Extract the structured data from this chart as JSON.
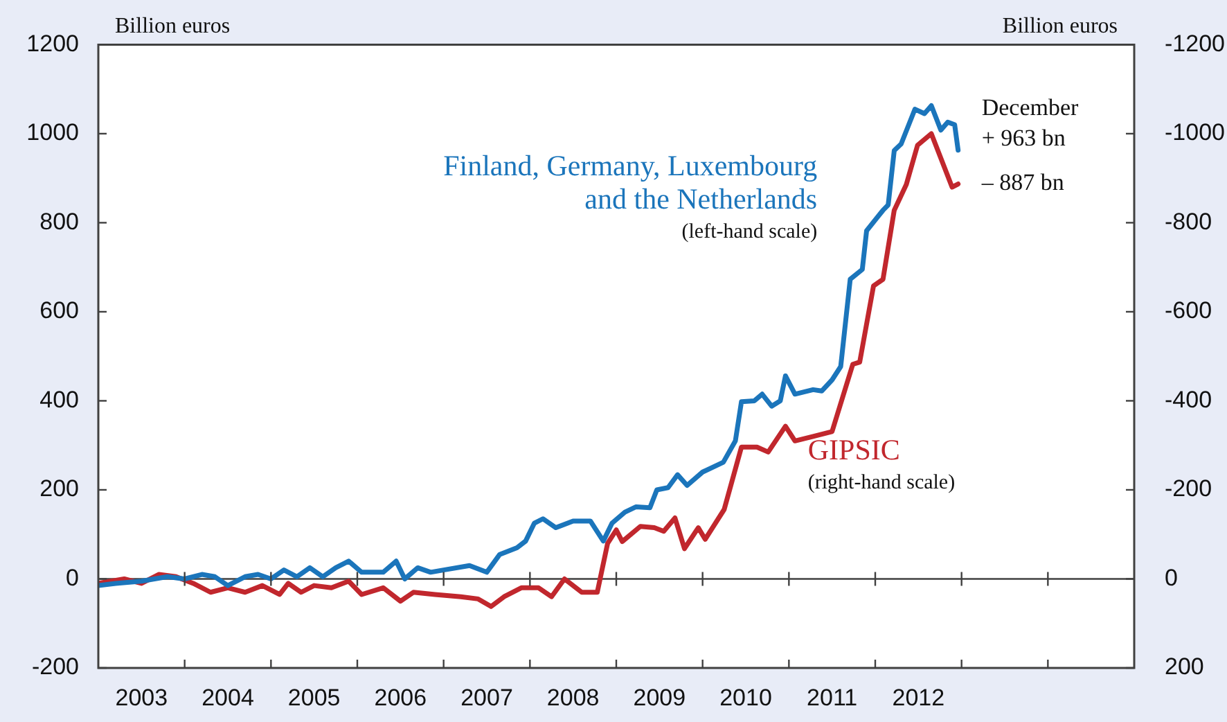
{
  "chart_data": {
    "type": "line",
    "ylabel": "Billion euros",
    "y2label": "Billion euros",
    "xlim": [
      2003,
      2015
    ],
    "xticks": [
      {
        "value": 2003.5,
        "label": "2003"
      },
      {
        "value": 2004,
        "label": null
      },
      {
        "value": 2004.5,
        "label": "2004"
      },
      {
        "value": 2005,
        "label": null
      },
      {
        "value": 2005.5,
        "label": "2005"
      },
      {
        "value": 2006,
        "label": null
      },
      {
        "value": 2006.5,
        "label": "2006"
      },
      {
        "value": 2007,
        "label": null
      },
      {
        "value": 2007.5,
        "label": "2007"
      },
      {
        "value": 2008,
        "label": null
      },
      {
        "value": 2008.5,
        "label": "2008"
      },
      {
        "value": 2009,
        "label": null
      },
      {
        "value": 2009.5,
        "label": "2009"
      },
      {
        "value": 2010,
        "label": null
      },
      {
        "value": 2010.5,
        "label": "2010"
      },
      {
        "value": 2011,
        "label": null
      },
      {
        "value": 2011.5,
        "label": "2011"
      },
      {
        "value": 2012,
        "label": null
      },
      {
        "value": 2012.5,
        "label": "2012"
      },
      {
        "value": 2013,
        "label": null
      },
      {
        "value": 2014,
        "label": null
      }
    ],
    "ylim": [
      -200,
      1200
    ],
    "yticks": [
      -200,
      0,
      200,
      400,
      600,
      800,
      1000,
      1200
    ],
    "y2lim": [
      200,
      -1200
    ],
    "y2ticks": [
      200,
      0,
      -200,
      -400,
      -600,
      -800,
      -1000,
      -1200
    ],
    "ref_lines": [
      {
        "axis": "y",
        "value": 0,
        "color": "#404040"
      }
    ],
    "annotations": [
      "(left-hand scale)",
      "(right-hand scale)",
      {
        "text": "December\n+ 963 bn",
        "x": 2012.96,
        "y": 963
      },
      {
        "text": "– 887 bn",
        "x": 2012.96,
        "y": 887
      }
    ],
    "series": [
      {
        "name": "Finland, Germany, Luxembourg and the Netherlands",
        "color": "#1b75bb",
        "x": [
          2003.0,
          2003.2,
          2003.5,
          2003.8,
          2004.0,
          2004.2,
          2004.35,
          2004.5,
          2004.7,
          2004.85,
          2005.0,
          2005.15,
          2005.3,
          2005.45,
          2005.6,
          2005.75,
          2005.9,
          2006.05,
          2006.3,
          2006.45,
          2006.55,
          2006.7,
          2006.85,
          2007.0,
          2007.3,
          2007.5,
          2007.65,
          2007.85,
          2007.95,
          2008.05,
          2008.15,
          2008.3,
          2008.5,
          2008.7,
          2008.85,
          2008.95,
          2009.1,
          2009.23,
          2009.39,
          2009.47,
          2009.6,
          2009.71,
          2009.82,
          2010.0,
          2010.24,
          2010.38,
          2010.45,
          2010.6,
          2010.69,
          2010.8,
          2010.9,
          2010.96,
          2011.07,
          2011.28,
          2011.38,
          2011.5,
          2011.6,
          2011.71,
          2011.85,
          2011.9,
          2012.09,
          2012.15,
          2012.22,
          2012.3,
          2012.46,
          2012.57,
          2012.65,
          2012.76,
          2012.84,
          2012.92,
          2012.96
        ],
        "values": [
          -15,
          -10,
          -5,
          5,
          0,
          10,
          5,
          -15,
          5,
          10,
          0,
          20,
          5,
          25,
          5,
          25,
          40,
          15,
          15,
          40,
          0,
          25,
          15,
          20,
          30,
          15,
          55,
          70,
          85,
          125,
          135,
          115,
          130,
          130,
          85,
          125,
          150,
          162,
          160,
          200,
          205,
          234,
          210,
          240,
          262,
          310,
          398,
          400,
          415,
          388,
          400,
          456,
          415,
          425,
          422,
          447,
          477,
          673,
          695,
          782,
          828,
          840,
          962,
          977,
          1055,
          1045,
          1063,
          1008,
          1026,
          1020,
          963
        ]
      },
      {
        "name": "GIPSIC",
        "color": "#c1272d",
        "axis": "y2",
        "x": [
          2003.0,
          2003.3,
          2003.5,
          2003.7,
          2003.9,
          2004.1,
          2004.3,
          2004.5,
          2004.7,
          2004.9,
          2005.1,
          2005.2,
          2005.35,
          2005.5,
          2005.7,
          2005.9,
          2006.05,
          2006.3,
          2006.5,
          2006.65,
          2006.9,
          2007.2,
          2007.4,
          2007.55,
          2007.7,
          2007.9,
          2008.1,
          2008.25,
          2008.4,
          2008.6,
          2008.78,
          2008.9,
          2009.0,
          2009.07,
          2009.28,
          2009.44,
          2009.55,
          2009.68,
          2009.79,
          2009.95,
          2010.03,
          2010.25,
          2010.45,
          2010.63,
          2010.76,
          2010.96,
          2011.07,
          2011.28,
          2011.5,
          2011.74,
          2011.82,
          2011.98,
          2012.09,
          2012.22,
          2012.36,
          2012.49,
          2012.65,
          2012.89,
          2012.96
        ],
        "values": [
          10,
          0,
          10,
          -10,
          -5,
          10,
          30,
          20,
          30,
          15,
          35,
          10,
          30,
          15,
          20,
          5,
          35,
          20,
          50,
          30,
          35,
          40,
          45,
          62,
          40,
          20,
          20,
          40,
          0,
          30,
          30,
          -80,
          -110,
          -84,
          -118,
          -115,
          -107,
          -137,
          -68,
          -115,
          -89,
          -156,
          -296,
          -296,
          -285,
          -343,
          -310,
          -320,
          -331,
          -482,
          -487,
          -658,
          -673,
          -828,
          -886,
          -974,
          -1000,
          -880,
          -887
        ]
      }
    ]
  }
}
